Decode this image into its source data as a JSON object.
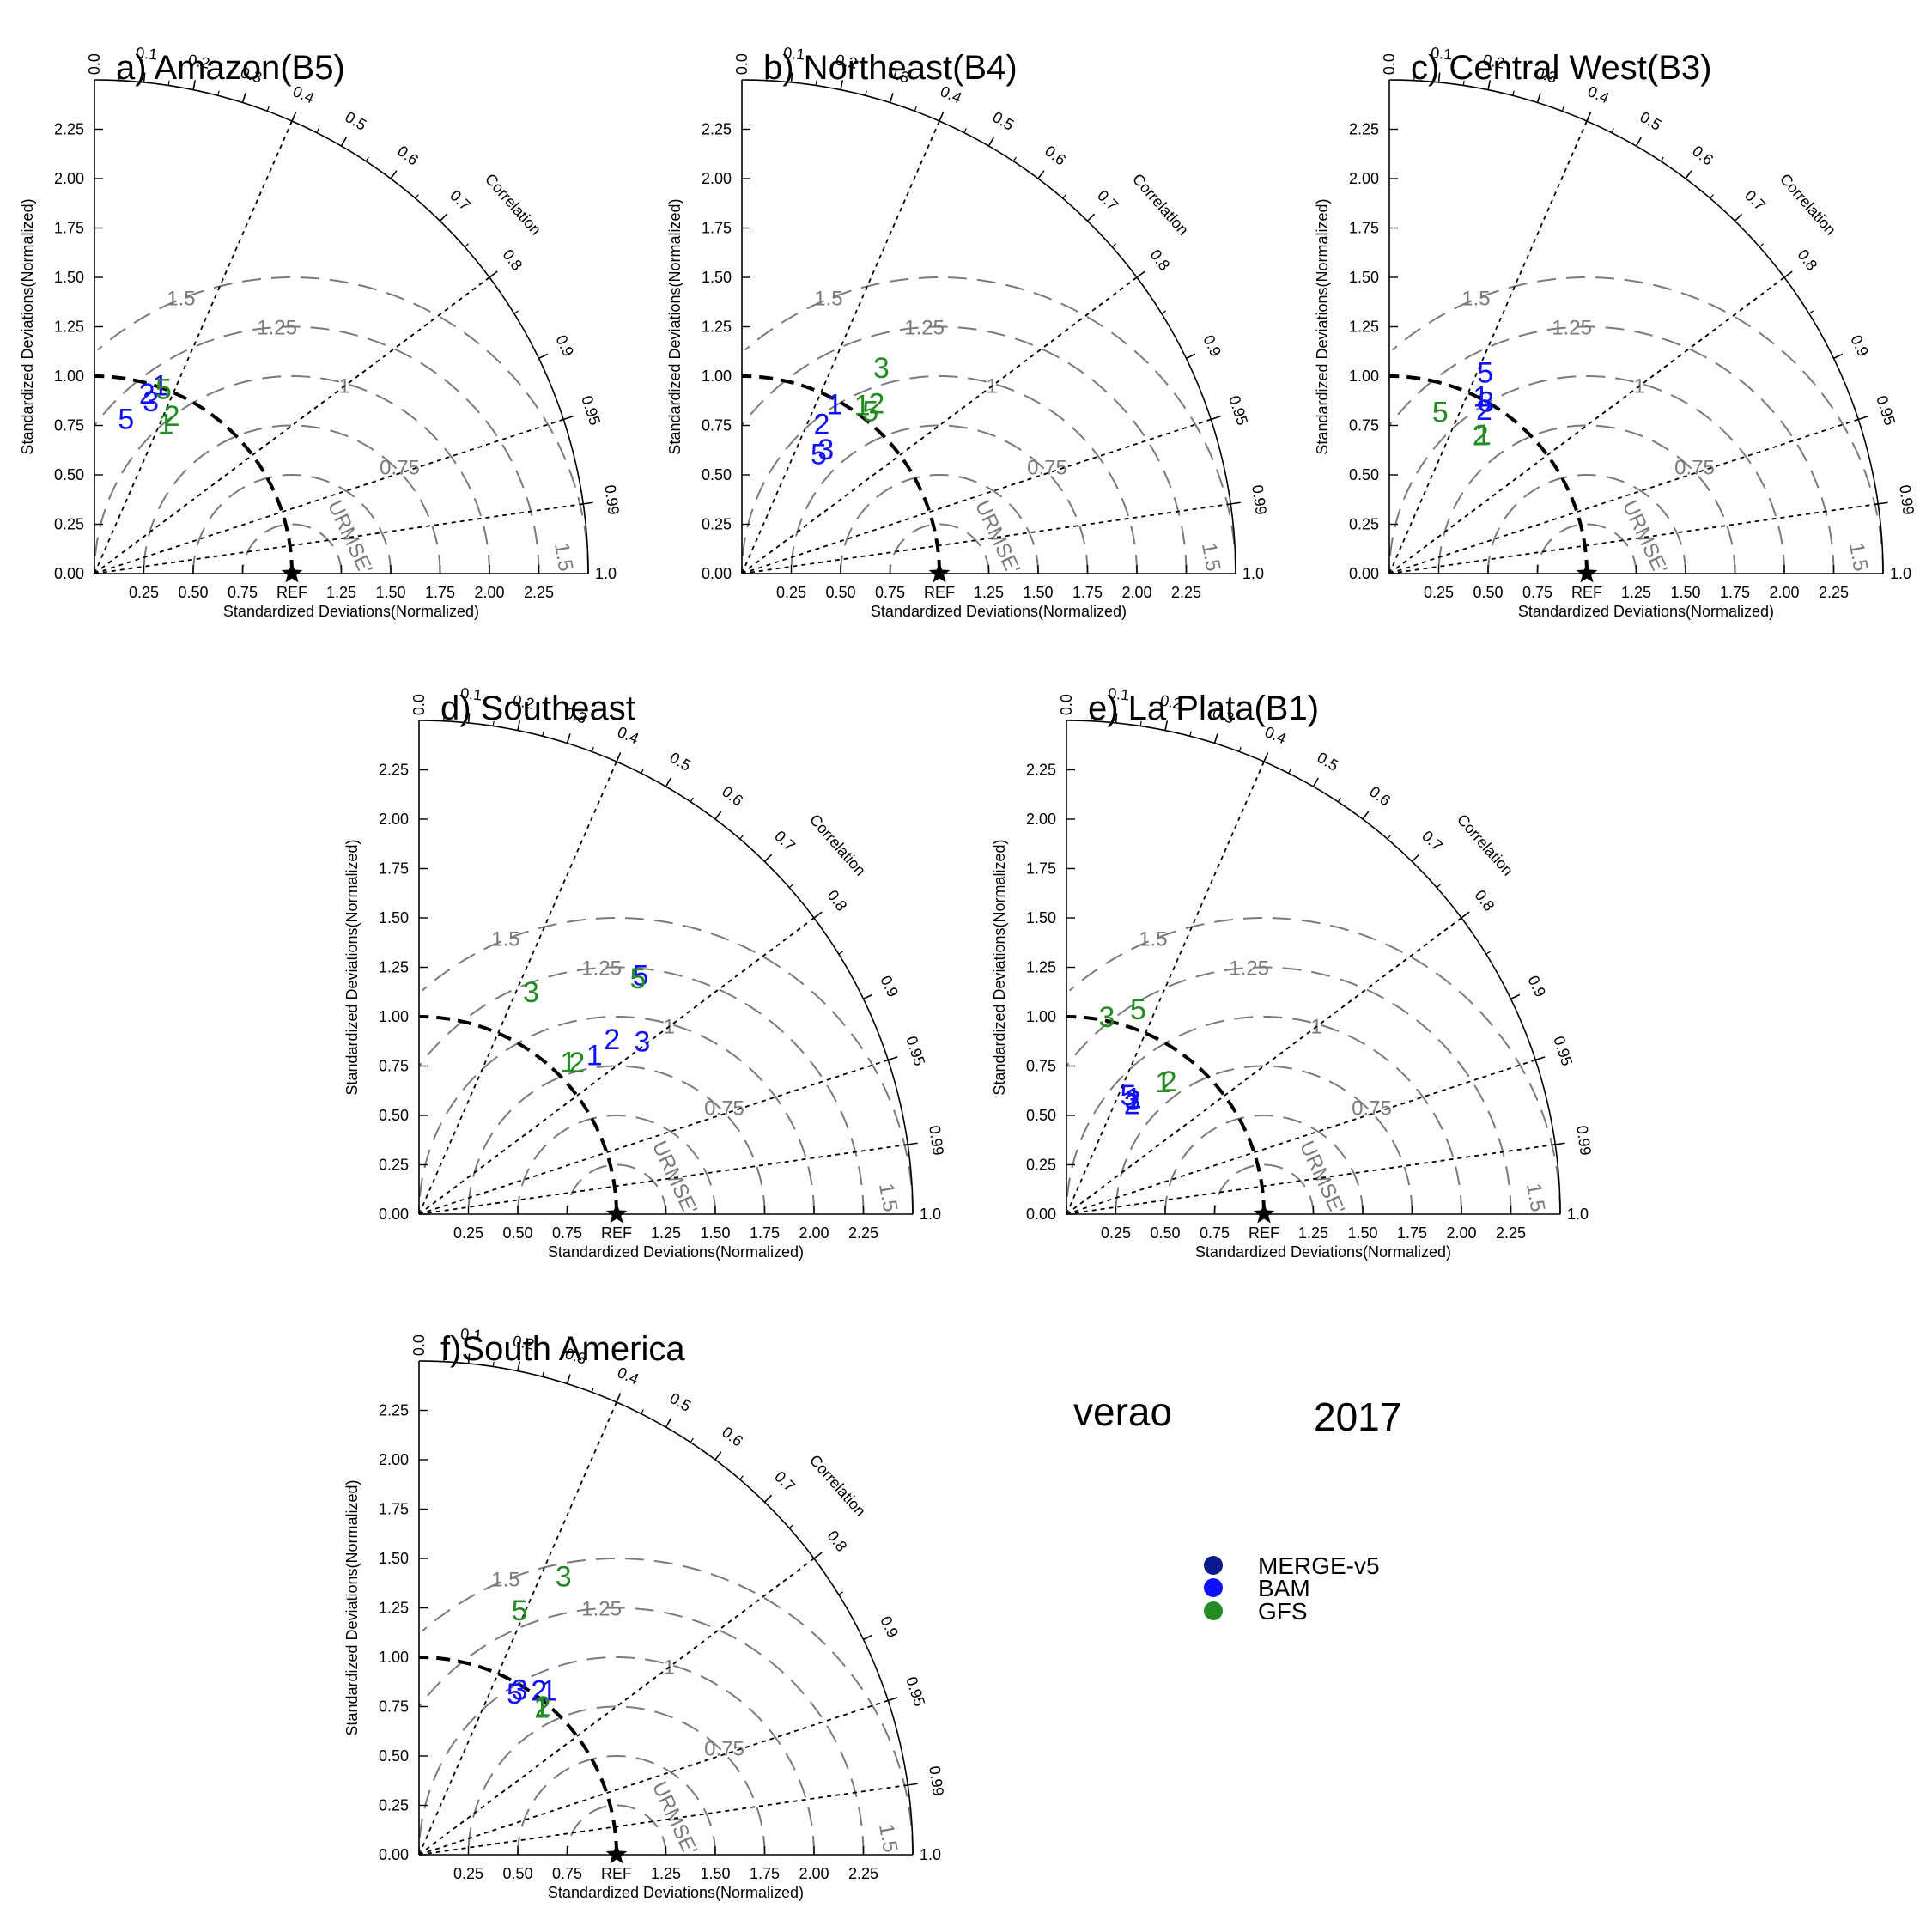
{
  "figure": {
    "season_label": "verao",
    "year_label": "2017",
    "legend": [
      {
        "label": "MERGE-v5",
        "color": "#0a1a8c"
      },
      {
        "label": "BAM",
        "color": "#1010ff"
      },
      {
        "label": "GFS",
        "color": "#228b22"
      }
    ]
  },
  "chart_data": [
    {
      "type": "taylor",
      "title": "a) Amazon(B5)",
      "xlabel": "Standardized Deviations(Normalized)",
      "ylabel": "Standardized Deviations(Normalized)",
      "correlation_label": "Correlation",
      "rmse_label": "URMSE'",
      "ref_label": "REF",
      "series": [
        {
          "name": "BAM",
          "color": "#1010ff",
          "points": [
            {
              "label": "1",
              "sd": 1.01,
              "corr": 0.33
            },
            {
              "label": "2",
              "sd": 0.95,
              "corr": 0.28
            },
            {
              "label": "3",
              "sd": 0.92,
              "corr": 0.31
            },
            {
              "label": "5",
              "sd": 0.8,
              "corr": 0.2
            }
          ]
        },
        {
          "name": "GFS",
          "color": "#228b22",
          "points": [
            {
              "label": "1",
              "sd": 0.84,
              "corr": 0.43
            },
            {
              "label": "2",
              "sd": 0.89,
              "corr": 0.44
            },
            {
              "label": "5",
              "sd": 1.0,
              "corr": 0.35
            }
          ]
        }
      ]
    },
    {
      "type": "taylor",
      "title": "b) Northeast(B4)",
      "xlabel": "Standardized Deviations(Normalized)",
      "ylabel": "Standardized Deviations(Normalized)",
      "correlation_label": "Correlation",
      "rmse_label": "URMSE'",
      "ref_label": "REF",
      "series": [
        {
          "name": "BAM",
          "color": "#1010ff",
          "points": [
            {
              "label": "1",
              "sd": 0.98,
              "corr": 0.48
            },
            {
              "label": "2",
              "sd": 0.86,
              "corr": 0.47
            },
            {
              "label": "3",
              "sd": 0.76,
              "corr": 0.56
            },
            {
              "label": "5",
              "sd": 0.72,
              "corr": 0.54
            }
          ]
        },
        {
          "name": "GFS",
          "color": "#228b22",
          "points": [
            {
              "label": "1",
              "sd": 1.05,
              "corr": 0.58
            },
            {
              "label": "2",
              "sd": 1.1,
              "corr": 0.62
            },
            {
              "label": "3",
              "sd": 1.26,
              "corr": 0.56
            },
            {
              "label": "5",
              "sd": 1.05,
              "corr": 0.62
            }
          ]
        }
      ]
    },
    {
      "type": "taylor",
      "title": "c) Central West(B3)",
      "xlabel": "Standardized Deviations(Normalized)",
      "ylabel": "Standardized Deviations(Normalized)",
      "correlation_label": "Correlation",
      "rmse_label": "URMSE'",
      "ref_label": "REF",
      "series": [
        {
          "name": "BAM",
          "color": "#1010ff",
          "points": [
            {
              "label": "1",
              "sd": 1.01,
              "corr": 0.46
            },
            {
              "label": "2",
              "sd": 0.96,
              "corr": 0.5
            },
            {
              "label": "3",
              "sd": 1.0,
              "corr": 0.49
            },
            {
              "label": "5",
              "sd": 1.13,
              "corr": 0.43
            }
          ]
        },
        {
          "name": "GFS",
          "color": "#228b22",
          "points": [
            {
              "label": "1",
              "sd": 0.85,
              "corr": 0.56
            },
            {
              "label": "2",
              "sd": 0.84,
              "corr": 0.55
            },
            {
              "label": "5",
              "sd": 0.86,
              "corr": 0.3
            }
          ]
        }
      ]
    },
    {
      "type": "taylor",
      "title": "d) Southeast",
      "xlabel": "Standardized Deviations(Normalized)",
      "ylabel": "Standardized Deviations(Normalized)",
      "correlation_label": "Correlation",
      "rmse_label": "URMSE'",
      "ref_label": "REF",
      "series": [
        {
          "name": "BAM",
          "color": "#1010ff",
          "points": [
            {
              "label": "1",
              "sd": 1.2,
              "corr": 0.74
            },
            {
              "label": "2",
              "sd": 1.32,
              "corr": 0.74
            },
            {
              "label": "3",
              "sd": 1.43,
              "corr": 0.79
            },
            {
              "label": "5",
              "sd": 1.65,
              "corr": 0.68
            }
          ]
        },
        {
          "name": "GFS",
          "color": "#228b22",
          "points": [
            {
              "label": "1",
              "sd": 1.08,
              "corr": 0.7
            },
            {
              "label": "2",
              "sd": 1.11,
              "corr": 0.72
            },
            {
              "label": "3",
              "sd": 1.26,
              "corr": 0.45
            },
            {
              "label": "5",
              "sd": 1.63,
              "corr": 0.68
            }
          ]
        }
      ]
    },
    {
      "type": "taylor",
      "title": "e) La Plata(B1)",
      "xlabel": "Standardized Deviations(Normalized)",
      "ylabel": "Standardized Deviations(Normalized)",
      "correlation_label": "Correlation",
      "rmse_label": "URMSE'",
      "ref_label": "REF",
      "series": [
        {
          "name": "BAM",
          "color": "#1010ff",
          "points": [
            {
              "label": "1",
              "sd": 0.68,
              "corr": 0.5
            },
            {
              "label": "2",
              "sd": 0.65,
              "corr": 0.51
            },
            {
              "label": "3",
              "sd": 0.67,
              "corr": 0.5
            },
            {
              "label": "5",
              "sd": 0.68,
              "corr": 0.46
            }
          ]
        },
        {
          "name": "GFS",
          "color": "#228b22",
          "points": [
            {
              "label": "1",
              "sd": 0.83,
              "corr": 0.59
            },
            {
              "label": "2",
              "sd": 0.85,
              "corr": 0.61
            },
            {
              "label": "3",
              "sd": 1.02,
              "corr": 0.2
            },
            {
              "label": "5",
              "sd": 1.1,
              "corr": 0.33
            }
          ]
        }
      ]
    },
    {
      "type": "taylor",
      "title": "f)South America",
      "xlabel": "Standardized Deviations(Normalized)",
      "ylabel": "Standardized Deviations(Normalized)",
      "correlation_label": "Correlation",
      "rmse_label": "URMSE'",
      "ref_label": "REF",
      "series": [
        {
          "name": "BAM",
          "color": "#1010ff",
          "points": [
            {
              "label": "1",
              "sd": 1.06,
              "corr": 0.62
            },
            {
              "label": "2",
              "sd": 1.03,
              "corr": 0.59
            },
            {
              "label": "3",
              "sd": 0.98,
              "corr": 0.52
            },
            {
              "label": "5",
              "sd": 0.95,
              "corr": 0.51
            }
          ]
        },
        {
          "name": "GFS",
          "color": "#228b22",
          "points": [
            {
              "label": "1",
              "sd": 0.97,
              "corr": 0.64
            },
            {
              "label": "2",
              "sd": 0.98,
              "corr": 0.64
            },
            {
              "label": "3",
              "sd": 1.59,
              "corr": 0.46
            },
            {
              "label": "5",
              "sd": 1.34,
              "corr": 0.38
            }
          ]
        }
      ]
    }
  ]
}
